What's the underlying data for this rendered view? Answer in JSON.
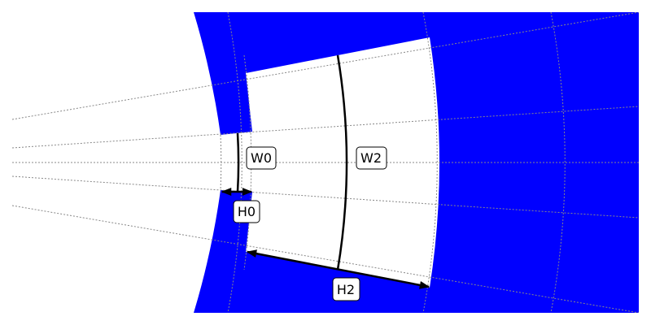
{
  "colors": {
    "fill": "#0000ff",
    "background": "#ffffff",
    "line": "#000000",
    "grid": "#888888"
  },
  "labels": {
    "w0": "W0",
    "w2": "W2",
    "h0": "H0",
    "h2": "H2"
  }
}
